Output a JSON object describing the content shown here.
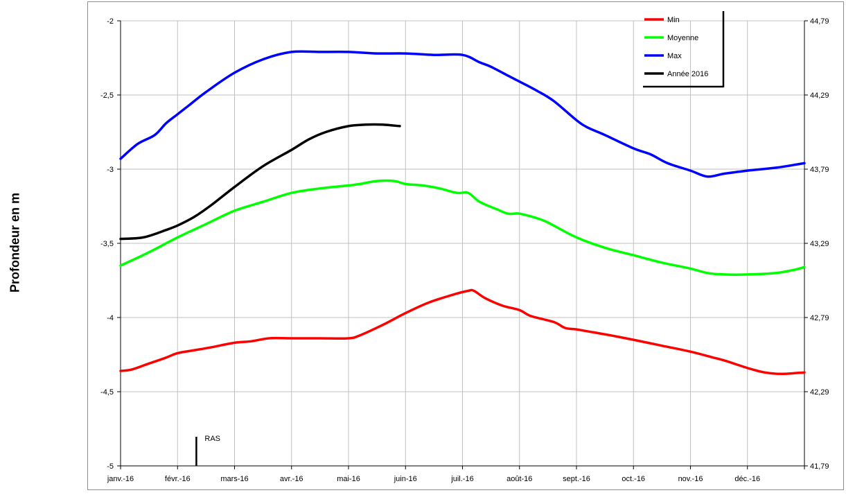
{
  "chart_data": {
    "type": "line",
    "ylabel": "Profondeur en m",
    "x_ticks": [
      "janv.-16",
      "févr.-16",
      "mars-16",
      "avr.-16",
      "mai-16",
      "juin-16",
      "juil.-16",
      "août-16",
      "sept.-16",
      "oct.-16",
      "nov.-16",
      "déc.-16"
    ],
    "ylim": [
      -5,
      -2
    ],
    "y_ticks": [
      "-2",
      "-2,5",
      "-3",
      "-3,5",
      "-4",
      "-4,5",
      "-5"
    ],
    "y2_ticks": [
      "44,79",
      "44,29",
      "43,79",
      "43,29",
      "42,79",
      "42,29",
      "41,79"
    ],
    "grid": true,
    "legend_position": "top-right",
    "annotation": "RAS",
    "annotation_x": 1.33,
    "series": [
      {
        "name": "Min",
        "color": "#ff0000",
        "x": [
          0,
          0.2,
          0.5,
          0.8,
          1,
          1.3,
          1.6,
          2,
          2.3,
          2.6,
          3,
          3.5,
          4,
          4.2,
          4.6,
          5,
          5.4,
          5.8,
          6.1,
          6.2,
          6.4,
          6.7,
          7,
          7.2,
          7.6,
          7.8,
          8,
          8.3,
          8.6,
          9,
          9.5,
          10,
          10.4,
          10.6,
          11,
          11.3,
          11.6,
          12
        ],
        "values": [
          -4.36,
          -4.35,
          -4.31,
          -4.27,
          -4.24,
          -4.22,
          -4.2,
          -4.17,
          -4.16,
          -4.14,
          -4.14,
          -4.14,
          -4.14,
          -4.12,
          -4.05,
          -3.97,
          -3.9,
          -3.85,
          -3.82,
          -3.82,
          -3.87,
          -3.92,
          -3.95,
          -3.99,
          -4.03,
          -4.07,
          -4.08,
          -4.1,
          -4.12,
          -4.15,
          -4.19,
          -4.23,
          -4.27,
          -4.29,
          -4.34,
          -4.37,
          -4.38,
          -4.37
        ]
      },
      {
        "name": "Moyenne",
        "color": "#00ff00",
        "x": [
          0,
          0.5,
          1,
          1.5,
          2,
          2.5,
          3,
          3.5,
          4,
          4.2,
          4.5,
          4.8,
          5,
          5.3,
          5.6,
          5.9,
          6.1,
          6.3,
          6.6,
          6.8,
          7,
          7.3,
          7.5,
          8,
          8.5,
          9,
          9.5,
          10,
          10.3,
          10.6,
          11,
          11.5,
          11.8,
          12
        ],
        "values": [
          -3.65,
          -3.56,
          -3.46,
          -3.37,
          -3.28,
          -3.22,
          -3.16,
          -3.13,
          -3.11,
          -3.1,
          -3.08,
          -3.08,
          -3.1,
          -3.11,
          -3.13,
          -3.16,
          -3.16,
          -3.22,
          -3.27,
          -3.3,
          -3.3,
          -3.33,
          -3.36,
          -3.46,
          -3.53,
          -3.58,
          -3.63,
          -3.67,
          -3.7,
          -3.71,
          -3.71,
          -3.7,
          -3.68,
          -3.66
        ]
      },
      {
        "name": "Max",
        "color": "#0000ff",
        "x": [
          0,
          0.3,
          0.6,
          0.8,
          1,
          1.2,
          1.5,
          2,
          2.5,
          3,
          3.5,
          4,
          4.5,
          5,
          5.5,
          6,
          6.3,
          6.5,
          6.8,
          7,
          7.3,
          7.6,
          8,
          8.2,
          8.5,
          9,
          9.3,
          9.6,
          10,
          10.3,
          10.6,
          11,
          11.5,
          12
        ],
        "values": [
          -2.93,
          -2.83,
          -2.77,
          -2.69,
          -2.63,
          -2.57,
          -2.48,
          -2.35,
          -2.26,
          -2.21,
          -2.21,
          -2.21,
          -2.22,
          -2.22,
          -2.23,
          -2.23,
          -2.28,
          -2.31,
          -2.37,
          -2.41,
          -2.47,
          -2.54,
          -2.67,
          -2.72,
          -2.77,
          -2.86,
          -2.9,
          -2.96,
          -3.01,
          -3.05,
          -3.03,
          -3.01,
          -2.99,
          -2.96
        ]
      },
      {
        "name": "Année 2016",
        "color": "#000000",
        "x": [
          0,
          0.4,
          0.8,
          1,
          1.3,
          1.6,
          2,
          2.5,
          3,
          3.3,
          3.6,
          4,
          4.3,
          4.6,
          4.9
        ],
        "values": [
          -3.47,
          -3.46,
          -3.41,
          -3.38,
          -3.32,
          -3.24,
          -3.12,
          -2.98,
          -2.87,
          -2.8,
          -2.75,
          -2.71,
          -2.7,
          -2.7,
          -2.71
        ]
      }
    ]
  }
}
